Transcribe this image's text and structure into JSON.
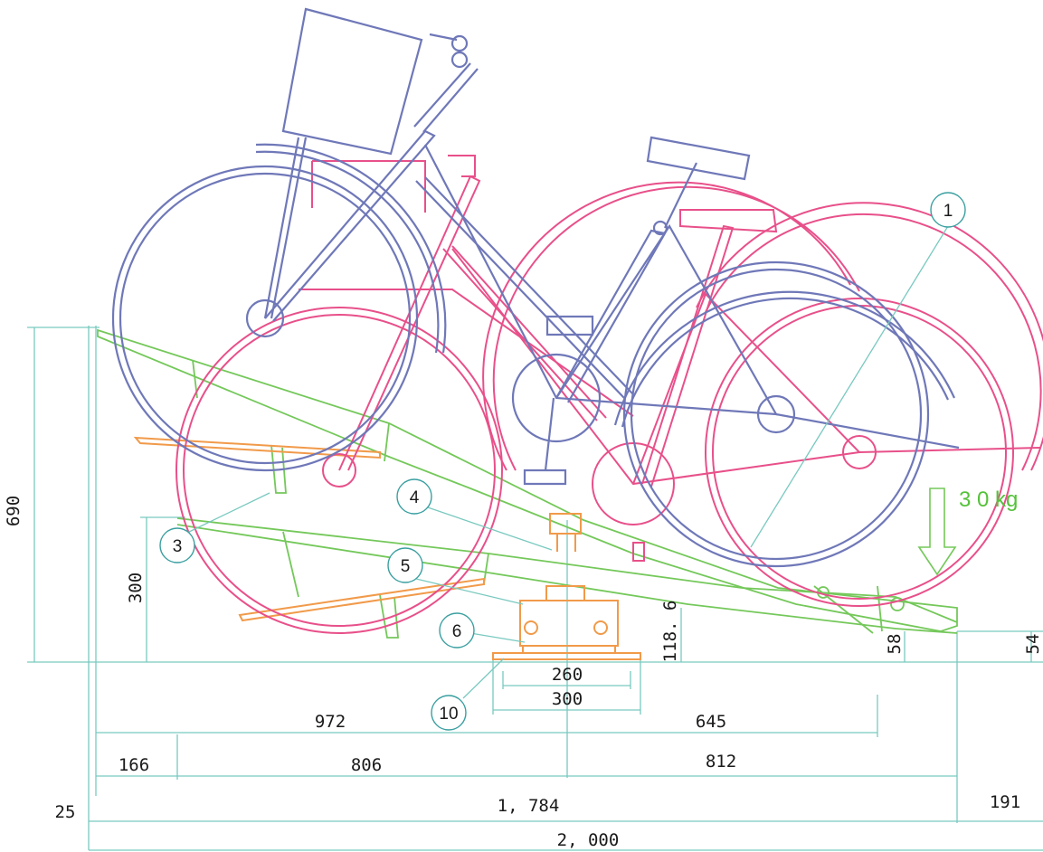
{
  "callouts": [
    "1",
    "3",
    "4",
    "5",
    "6",
    "10"
  ],
  "load": "3 0 kg",
  "dimensions": {
    "d690": "690",
    "d300": "300",
    "d118": "118. 6",
    "d58": "58",
    "d54": "54",
    "d260": "260",
    "d300b": "300",
    "d972": "972",
    "d645": "645",
    "d166": "166",
    "d806": "806",
    "d812": "812",
    "d25": "25",
    "d1784": "1, 784",
    "d191": "191",
    "d2000": "2, 000"
  },
  "colors": {
    "bike_upper": "#6f78b8",
    "bike_lower": "#e8508a",
    "rail": "#74c85a",
    "support": "#f19a4a",
    "dimension": "#79c9bf"
  }
}
